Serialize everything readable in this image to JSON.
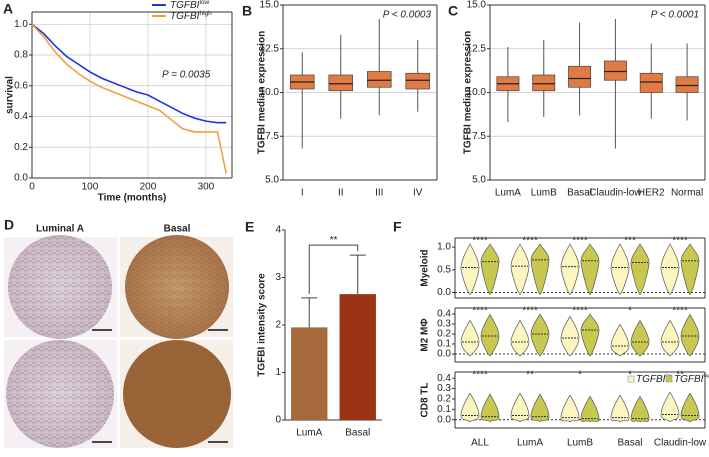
{
  "chart_data": [
    {
      "type": "line",
      "label": "A",
      "ylabel": "survival",
      "xlabel": "Time (months)",
      "annotation": "P = 0.0035",
      "x": [
        0,
        20,
        40,
        60,
        80,
        100,
        120,
        140,
        160,
        180,
        200,
        220,
        240,
        260,
        280,
        300,
        320,
        335
      ],
      "series": [
        {
          "name": "TGFBI",
          "name_sup": "low",
          "color": "#2233dd",
          "values": [
            1.0,
            0.94,
            0.86,
            0.79,
            0.74,
            0.69,
            0.65,
            0.62,
            0.59,
            0.56,
            0.54,
            0.5,
            0.46,
            0.42,
            0.39,
            0.37,
            0.36,
            0.36
          ]
        },
        {
          "name": "TGFBI",
          "name_sup": "high",
          "color": "#f0a040",
          "values": [
            1.0,
            0.92,
            0.82,
            0.74,
            0.68,
            0.63,
            0.59,
            0.56,
            0.53,
            0.5,
            0.47,
            0.44,
            0.38,
            0.32,
            0.3,
            0.3,
            0.3,
            0.03
          ]
        }
      ],
      "xlim": [
        0,
        345
      ],
      "xticks": [
        0,
        100,
        200,
        300
      ],
      "ylim": [
        0,
        1.08
      ],
      "yticks": [
        {
          "value": 0,
          "label": "0.0"
        },
        {
          "value": 0.2,
          "label": "0.2"
        },
        {
          "value": 0.4,
          "label": "0.4"
        },
        {
          "value": 0.6,
          "label": "0.6"
        },
        {
          "value": 0.8,
          "label": "0.8"
        },
        {
          "value": 1,
          "label": "1.0"
        }
      ],
      "grid": true
    },
    {
      "type": "box",
      "label": "B",
      "annotation": "P < 0.0003",
      "ylabel": "TGFBI median expression",
      "categories": [
        "I",
        "II",
        "III",
        "IV"
      ],
      "min": [
        6.8,
        8.5,
        8.7,
        8.9
      ],
      "q1": [
        10.2,
        10.1,
        10.3,
        10.2
      ],
      "median": [
        10.6,
        10.5,
        10.7,
        10.7
      ],
      "q3": [
        11.0,
        11.0,
        11.2,
        11.1
      ],
      "max": [
        12.3,
        13.3,
        14.2,
        13.0
      ],
      "color": "#e07b45",
      "ylim": [
        5,
        15
      ],
      "yticks": [
        {
          "value": 5,
          "label": "5.0"
        },
        {
          "value": 7.5,
          "label": "7.5"
        },
        {
          "value": 10,
          "label": "10.0"
        },
        {
          "value": 12.5,
          "label": "12.5"
        },
        {
          "value": 15,
          "label": "15.0"
        }
      ],
      "grid": true
    },
    {
      "type": "box",
      "label": "C",
      "annotation": "P < 0.0001",
      "ylabel": "TGFBI median expression",
      "categories": [
        "LumA",
        "LumB",
        "Basal",
        "Claudin-low",
        "HER2",
        "Normal"
      ],
      "min": [
        8.3,
        8.6,
        8.7,
        6.8,
        8.5,
        8.4
      ],
      "q1": [
        10.1,
        10.1,
        10.3,
        10.7,
        10.0,
        10.0
      ],
      "median": [
        10.5,
        10.5,
        10.8,
        11.2,
        10.6,
        10.4
      ],
      "q3": [
        10.9,
        11.0,
        11.5,
        11.8,
        11.1,
        10.9
      ],
      "max": [
        12.6,
        13.0,
        14.0,
        14.2,
        12.8,
        12.8
      ],
      "color": "#e07b45",
      "ylim": [
        5,
        15
      ],
      "yticks": [
        {
          "value": 5,
          "label": "5.0"
        },
        {
          "value": 7.5,
          "label": "7.5"
        },
        {
          "value": 10,
          "label": "10.0"
        },
        {
          "value": 12.5,
          "label": "12.5"
        },
        {
          "value": 15,
          "label": "15.0"
        }
      ],
      "grid": true
    },
    {
      "type": "bar",
      "label": "E",
      "ylabel": "TGFBI intensity score",
      "annotation": "**",
      "categories": [
        "LumA",
        "Basal"
      ],
      "values": [
        1.95,
        2.65
      ],
      "errors": [
        0.62,
        0.82
      ],
      "colors": [
        "#a5693b",
        "#9b3414"
      ],
      "ylim": [
        0,
        4
      ],
      "yticks": [
        0,
        1,
        2,
        3,
        4
      ]
    },
    {
      "type": "violin",
      "label": "F",
      "categories": [
        "ALL",
        "LumA",
        "LumB",
        "Basal",
        "Claudin-low"
      ],
      "legend": [
        {
          "name": "TGFBI",
          "name_sup": "low",
          "color": "#fbf6c0"
        },
        {
          "name": "TGFBI",
          "name_sup": "high",
          "color": "#c8c850"
        }
      ],
      "panels": [
        {
          "ylabel": "Myeloid",
          "ylim": [
            -0.12,
            1.2
          ],
          "yticks": [
            {
              "value": 0,
              "label": "0.0"
            },
            {
              "value": 0.5,
              "label": "0.5"
            },
            {
              "value": 1,
              "label": "1.0"
            }
          ],
          "series": [
            {
              "values": [
                0.55,
                0.58,
                0.57,
                0.55,
                0.55
              ]
            },
            {
              "values": [
                0.68,
                0.72,
                0.7,
                0.66,
                0.7
              ]
            }
          ],
          "significance": [
            "****",
            "****",
            "****",
            "***",
            "****"
          ]
        },
        {
          "ylabel": "M2 MΦ",
          "ylim": [
            -0.08,
            0.46
          ],
          "yticks": [
            {
              "value": 0,
              "label": "0.0"
            },
            {
              "value": 0.1,
              "label": "0.1"
            },
            {
              "value": 0.2,
              "label": "0.2"
            },
            {
              "value": 0.3,
              "label": "0.3"
            },
            {
              "value": 0.4,
              "label": "0.4"
            }
          ],
          "series": [
            {
              "values": [
                0.12,
                0.12,
                0.16,
                0.08,
                0.12
              ]
            },
            {
              "values": [
                0.18,
                0.2,
                0.24,
                0.12,
                0.18
              ]
            }
          ],
          "significance": [
            "****",
            "****",
            "****",
            "*",
            "****"
          ]
        },
        {
          "ylabel": "CD8 TL",
          "ylim": [
            -0.08,
            0.46
          ],
          "yticks": [
            {
              "value": 0,
              "label": "0.0"
            },
            {
              "value": 0.1,
              "label": "0.1"
            },
            {
              "value": 0.2,
              "label": "0.2"
            },
            {
              "value": 0.3,
              "label": "0.3"
            },
            {
              "value": 0.4,
              "label": "0.4"
            }
          ],
          "series": [
            {
              "values": [
                0.04,
                0.04,
                0.02,
                0.02,
                0.05
              ]
            },
            {
              "values": [
                0.03,
                0.03,
                0.01,
                0.01,
                0.04
              ]
            }
          ],
          "significance": [
            "****",
            "**",
            "*",
            "*",
            "**"
          ]
        }
      ]
    }
  ],
  "panel_d": {
    "label": "D",
    "titles": [
      "Luminal A",
      "Basal"
    ]
  }
}
